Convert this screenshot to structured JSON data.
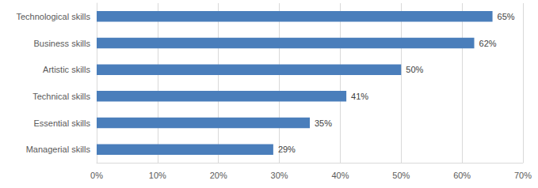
{
  "chart_data": {
    "type": "bar",
    "orientation": "horizontal",
    "categories": [
      "Technological skills",
      "Business skills",
      "Artistic skills",
      "Technical skills",
      "Essential skills",
      "Managerial skills"
    ],
    "values": [
      65,
      62,
      50,
      41,
      35,
      29
    ],
    "value_labels": [
      "65%",
      "62%",
      "50%",
      "41%",
      "35%",
      "29%"
    ],
    "data_labels": true,
    "color": "#4a7ebb",
    "xlim": [
      0,
      70
    ],
    "xticks": [
      {
        "value": 0,
        "label": "0%"
      },
      {
        "value": 10,
        "label": "10%"
      },
      {
        "value": 20,
        "label": "20%"
      },
      {
        "value": 30,
        "label": "30%"
      },
      {
        "value": 40,
        "label": "40%"
      },
      {
        "value": 50,
        "label": "50%"
      },
      {
        "value": 60,
        "label": "60%"
      },
      {
        "value": 70,
        "label": "70%"
      }
    ],
    "grid": true
  }
}
